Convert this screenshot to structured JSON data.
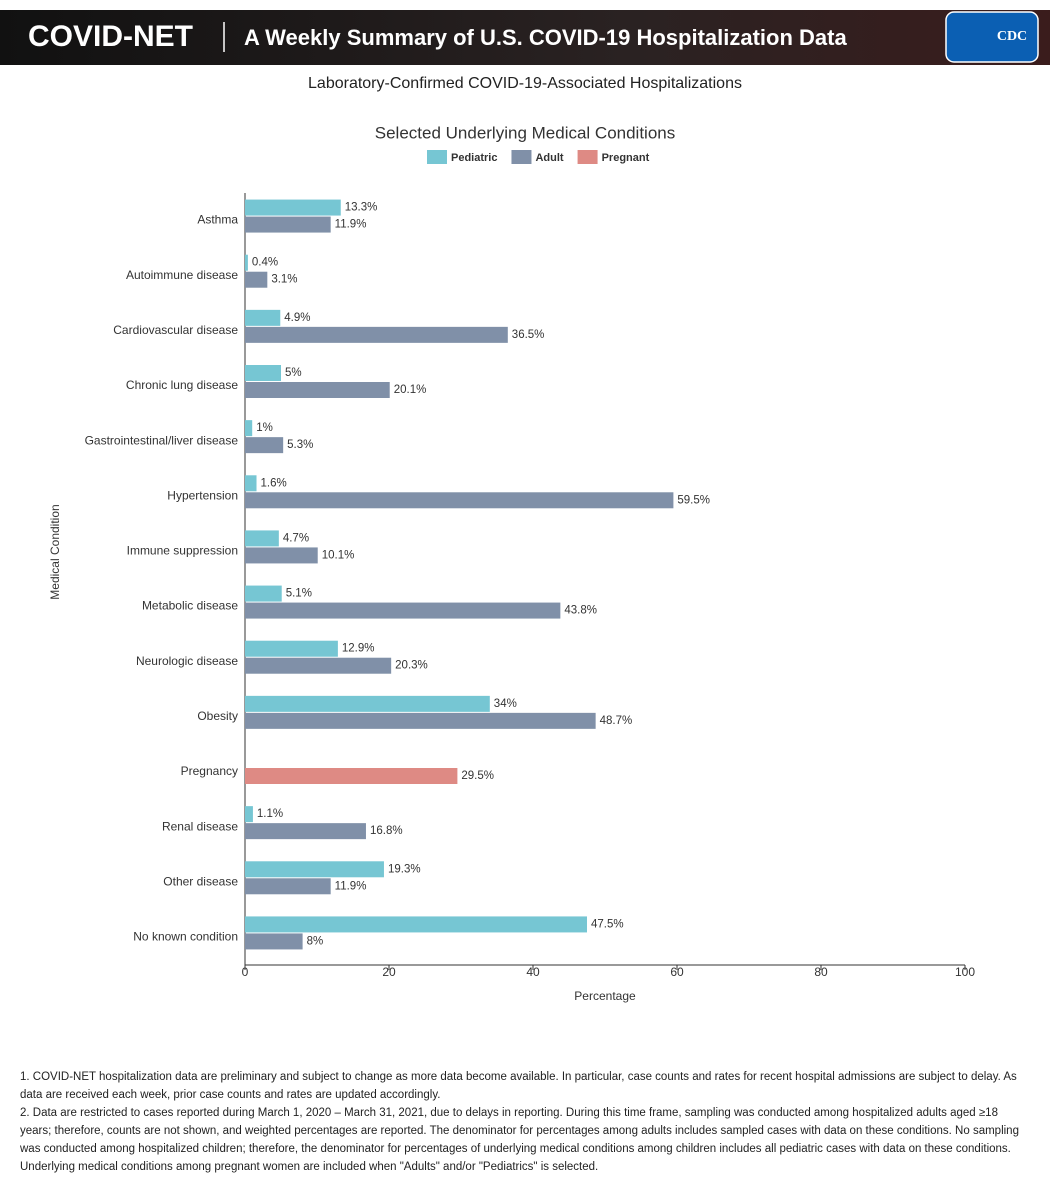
{
  "header": {
    "brand": "COVID-NET",
    "title": "A Weekly Summary of U.S. COVID-19 Hospitalization Data",
    "logo": "CDC"
  },
  "subtitle": "Laboratory-Confirmed COVID-19-Associated Hospitalizations",
  "chart_data": {
    "type": "bar",
    "orientation": "horizontal",
    "title": "Selected Underlying Medical Conditions",
    "x_label": "Percentage",
    "y_label": "Medical Condition",
    "categories": [
      "Asthma",
      "Autoimmune disease",
      "Cardiovascular disease",
      "Chronic lung disease",
      "Gastrointestinal/liver disease",
      "Hypertension",
      "Immune suppression",
      "Metabolic disease",
      "Neurologic disease",
      "Obesity",
      "Pregnancy",
      "Renal disease",
      "Other disease",
      "No known condition"
    ],
    "series": [
      {
        "name": "Pediatric",
        "color": "#76c6d3",
        "values": [
          13.3,
          0.4,
          4.9,
          5,
          1,
          1.6,
          4.7,
          5.1,
          12.9,
          34,
          null,
          1.1,
          19.3,
          47.5
        ],
        "value_labels": [
          "13.3%",
          "0.4%",
          "4.9%",
          "5%",
          "1%",
          "1.6%",
          "4.7%",
          "5.1%",
          "12.9%",
          "34%",
          null,
          "1.1%",
          "19.3%",
          "47.5%"
        ]
      },
      {
        "name": "Adult",
        "color": "#8090a8",
        "values": [
          11.9,
          3.1,
          36.5,
          20.1,
          5.3,
          59.5,
          10.1,
          43.8,
          20.3,
          48.7,
          null,
          16.8,
          11.9,
          8
        ],
        "value_labels": [
          "11.9%",
          "3.1%",
          "36.5%",
          "20.1%",
          "5.3%",
          "59.5%",
          "10.1%",
          "43.8%",
          "20.3%",
          "48.7%",
          null,
          "16.8%",
          "11.9%",
          "8%"
        ]
      },
      {
        "name": "Pregnant",
        "color": "#de8a84",
        "values": [
          null,
          null,
          null,
          null,
          null,
          null,
          null,
          null,
          null,
          null,
          29.5,
          null,
          null,
          null
        ],
        "value_labels": [
          null,
          null,
          null,
          null,
          null,
          null,
          null,
          null,
          null,
          null,
          "29.5%",
          null,
          null,
          null
        ]
      }
    ],
    "xlim": [
      0,
      100
    ],
    "xticks": [
      0,
      20,
      40,
      60,
      80,
      100
    ],
    "grid": false,
    "legend": "top"
  },
  "footnotes": [
    "1. COVID-NET hospitalization data are preliminary and subject to change as more data become available. In particular, case counts and rates for recent hospital admissions are subject to delay. As data are received each week, prior case counts and rates are updated accordingly.",
    "2. Data are restricted to cases reported during March 1, 2020 – March 31, 2021, due to delays in reporting. During this time frame, sampling was conducted among hospitalized adults aged ≥18 years; therefore, counts are not shown, and weighted percentages are reported. The denominator for percentages among adults includes sampled cases with data on these conditions. No sampling was conducted among hospitalized children; therefore, the denominator for percentages of underlying medical conditions among children includes all pediatric cases with data on these conditions. Underlying medical conditions among pregnant women are included when \"Adults\" and/or \"Pediatrics\" is selected."
  ]
}
